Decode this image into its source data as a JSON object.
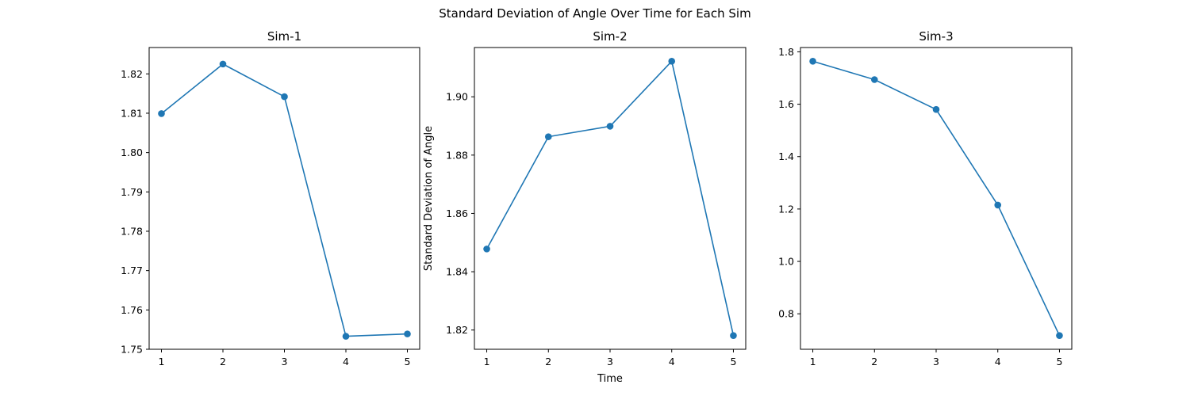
{
  "figure": {
    "suptitle": "Standard Deviation of Angle Over Time for Each Sim",
    "xlabel": "Time",
    "ylabel": "Standard Deviation of Angle",
    "line_color": "#1f77b4"
  },
  "chart_data": [
    {
      "type": "line",
      "title": "Sim-1",
      "x": [
        1,
        2,
        3,
        4,
        5
      ],
      "series": [
        {
          "values": [
            1.8099,
            1.8225,
            1.8142,
            1.7533,
            1.7539
          ],
          "marker": "circle"
        }
      ],
      "xticks": [
        "1",
        "2",
        "3",
        "4",
        "5"
      ],
      "yticks": [
        "1.75",
        "1.76",
        "1.77",
        "1.78",
        "1.79",
        "1.80",
        "1.81",
        "1.82"
      ],
      "xlim": [
        0.8,
        5.2
      ],
      "ylim": [
        1.75,
        1.8267
      ],
      "xlabel": "",
      "ylabel": "",
      "grid": false,
      "legend": false
    },
    {
      "type": "line",
      "title": "Sim-2",
      "x": [
        1,
        2,
        3,
        4,
        5
      ],
      "series": [
        {
          "values": [
            1.8478,
            1.8863,
            1.8899,
            1.9122,
            1.8181
          ],
          "marker": "circle"
        }
      ],
      "xticks": [
        "1",
        "2",
        "3",
        "4",
        "5"
      ],
      "yticks": [
        "1.82",
        "1.84",
        "1.86",
        "1.88",
        "1.90"
      ],
      "xlim": [
        0.8,
        5.2
      ],
      "ylim": [
        1.8134,
        1.9169
      ],
      "xlabel": "Time",
      "ylabel": "Standard Deviation of Angle",
      "grid": false,
      "legend": false
    },
    {
      "type": "line",
      "title": "Sim-3",
      "x": [
        1,
        2,
        3,
        4,
        5
      ],
      "series": [
        {
          "values": [
            1.764,
            1.694,
            1.58,
            1.215,
            0.717
          ],
          "marker": "circle"
        }
      ],
      "xticks": [
        "1",
        "2",
        "3",
        "4",
        "5"
      ],
      "yticks": [
        "0.8",
        "1.0",
        "1.2",
        "1.4",
        "1.6",
        "1.8"
      ],
      "xlim": [
        0.8,
        5.2
      ],
      "ylim": [
        0.6646,
        1.8164
      ],
      "xlabel": "",
      "ylabel": "",
      "grid": false,
      "legend": false
    }
  ]
}
